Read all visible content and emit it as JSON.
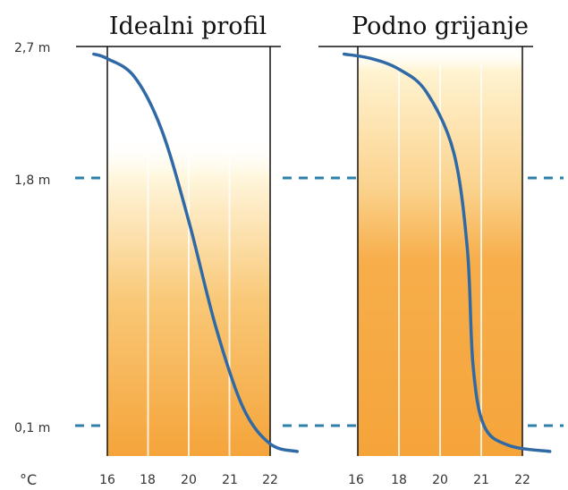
{
  "colors": {
    "curve": "#2f6aa6",
    "dash": "#2f7fa8",
    "frame": "#111111",
    "band_light": "#fff6dc",
    "band_dark": "#f5a43a"
  },
  "y_axis": {
    "ticks": [
      {
        "value": 2.7,
        "label": "2,7 m"
      },
      {
        "value": 1.8,
        "label": "1,8 m"
      },
      {
        "value": 0.1,
        "label": "0,1 m"
      }
    ],
    "dashed_levels": [
      1.8,
      0.1
    ]
  },
  "x_axis": {
    "unit": "°C",
    "tick_labels": [
      "16",
      "18",
      "20",
      "21",
      "22"
    ]
  },
  "chart_data": [
    {
      "type": "line",
      "title": "Idealni profil",
      "xlabel": "°C",
      "ylabel": "",
      "x_categories": [
        "16",
        "18",
        "20",
        "21",
        "22"
      ],
      "yticks": [
        2.7,
        1.8,
        0.1
      ],
      "ylim": [
        0,
        2.7
      ],
      "series": [
        {
          "points": [
            {
              "x": 15.5,
              "y": 2.65
            },
            {
              "x": 16.0,
              "y": 2.62
            },
            {
              "x": 17.0,
              "y": 2.5
            },
            {
              "x": 18.0,
              "y": 2.15
            },
            {
              "x": 19.0,
              "y": 1.55
            },
            {
              "x": 20.0,
              "y": 0.85
            },
            {
              "x": 21.0,
              "y": 0.32
            },
            {
              "x": 22.0,
              "y": 0.08
            },
            {
              "x": 23.0,
              "y": 0.03
            }
          ]
        }
      ]
    },
    {
      "type": "line",
      "title": "Podno grijanje",
      "xlabel": "°C",
      "ylabel": "",
      "x_categories": [
        "16",
        "18",
        "20",
        "21",
        "22"
      ],
      "yticks": [
        2.7,
        1.8,
        0.1
      ],
      "ylim": [
        0,
        2.7
      ],
      "series": [
        {
          "points": [
            {
              "x": 15.5,
              "y": 2.65
            },
            {
              "x": 16.5,
              "y": 2.62
            },
            {
              "x": 17.5,
              "y": 2.55
            },
            {
              "x": 18.5,
              "y": 2.4
            },
            {
              "x": 19.5,
              "y": 2.0
            },
            {
              "x": 20.0,
              "y": 1.35
            },
            {
              "x": 20.2,
              "y": 0.6
            },
            {
              "x": 20.6,
              "y": 0.2
            },
            {
              "x": 21.5,
              "y": 0.07
            },
            {
              "x": 23.0,
              "y": 0.03
            }
          ]
        }
      ]
    }
  ]
}
